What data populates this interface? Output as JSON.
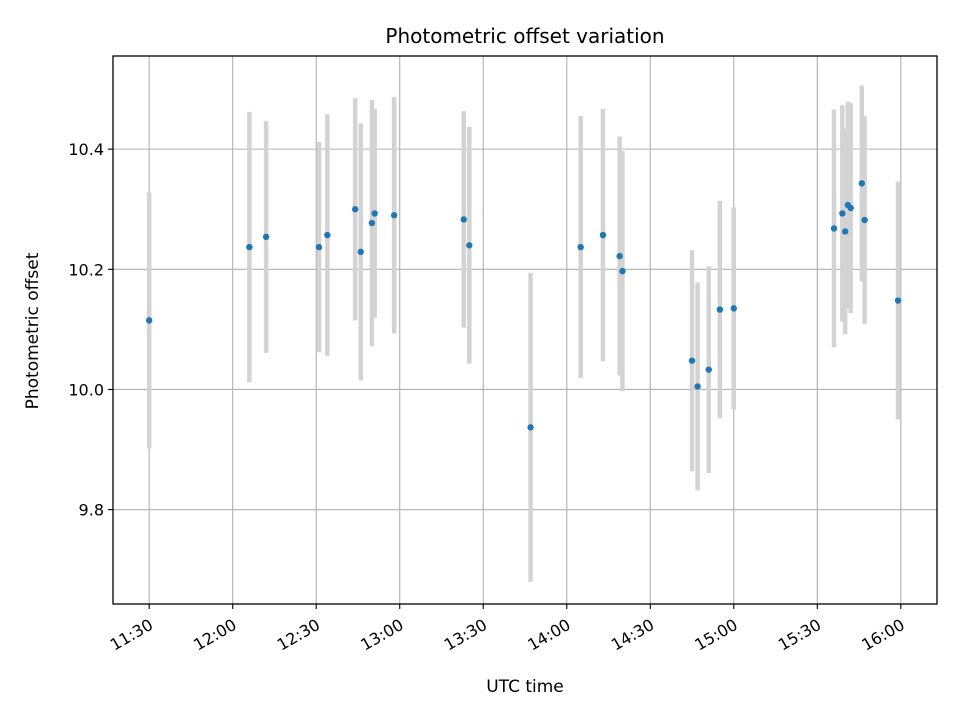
{
  "chart_data": {
    "type": "scatter",
    "title": "Photometric offset variation",
    "xlabel": "UTC time",
    "ylabel": "Photometric offset",
    "x_type": "time",
    "xlim": [
      "11:17",
      "16:13"
    ],
    "ylim": [
      9.643,
      10.555
    ],
    "x_ticks": [
      "11:30",
      "12:00",
      "12:30",
      "13:00",
      "13:30",
      "14:00",
      "14:30",
      "15:00",
      "15:30",
      "16:00"
    ],
    "y_ticks": [
      9.8,
      10.0,
      10.2,
      10.4
    ],
    "y_tick_labels": [
      "9.8",
      "10.0",
      "10.2",
      "10.4"
    ],
    "grid": true,
    "colors": {
      "point": "#1f77b4",
      "errorbar": "#d3d3d3",
      "grid": "#b0b0b0"
    },
    "series": [
      {
        "points": [
          {
            "x": "11:30",
            "y": 10.115,
            "err": 0.213
          },
          {
            "x": "12:06",
            "y": 10.237,
            "err": 0.225
          },
          {
            "x": "12:12",
            "y": 10.254,
            "err": 0.193
          },
          {
            "x": "12:31",
            "y": 10.237,
            "err": 0.175
          },
          {
            "x": "12:34",
            "y": 10.257,
            "err": 0.201
          },
          {
            "x": "12:44",
            "y": 10.3,
            "err": 0.185
          },
          {
            "x": "12:46",
            "y": 10.229,
            "err": 0.214
          },
          {
            "x": "12:50",
            "y": 10.277,
            "err": 0.205
          },
          {
            "x": "12:51",
            "y": 10.293,
            "err": 0.174
          },
          {
            "x": "12:58",
            "y": 10.29,
            "err": 0.197
          },
          {
            "x": "13:23",
            "y": 10.283,
            "err": 0.18
          },
          {
            "x": "13:25",
            "y": 10.24,
            "err": 0.197
          },
          {
            "x": "13:47",
            "y": 9.937,
            "err": 0.257
          },
          {
            "x": "14:05",
            "y": 10.237,
            "err": 0.218
          },
          {
            "x": "14:13",
            "y": 10.257,
            "err": 0.21
          },
          {
            "x": "14:19",
            "y": 10.222,
            "err": 0.199
          },
          {
            "x": "14:20",
            "y": 10.197,
            "err": 0.2
          },
          {
            "x": "14:45",
            "y": 10.048,
            "err": 0.184
          },
          {
            "x": "14:47",
            "y": 10.005,
            "err": 0.173
          },
          {
            "x": "14:51",
            "y": 10.033,
            "err": 0.172
          },
          {
            "x": "14:55",
            "y": 10.133,
            "err": 0.181
          },
          {
            "x": "15:00",
            "y": 10.135,
            "err": 0.168
          },
          {
            "x": "15:36",
            "y": 10.268,
            "err": 0.198
          },
          {
            "x": "15:39",
            "y": 10.293,
            "err": 0.18
          },
          {
            "x": "15:40",
            "y": 10.263,
            "err": 0.171
          },
          {
            "x": "15:41",
            "y": 10.307,
            "err": 0.172
          },
          {
            "x": "15:42",
            "y": 10.302,
            "err": 0.175
          },
          {
            "x": "15:46",
            "y": 10.343,
            "err": 0.163
          },
          {
            "x": "15:47",
            "y": 10.282,
            "err": 0.173
          },
          {
            "x": "15:59",
            "y": 10.148,
            "err": 0.198
          }
        ]
      }
    ]
  }
}
